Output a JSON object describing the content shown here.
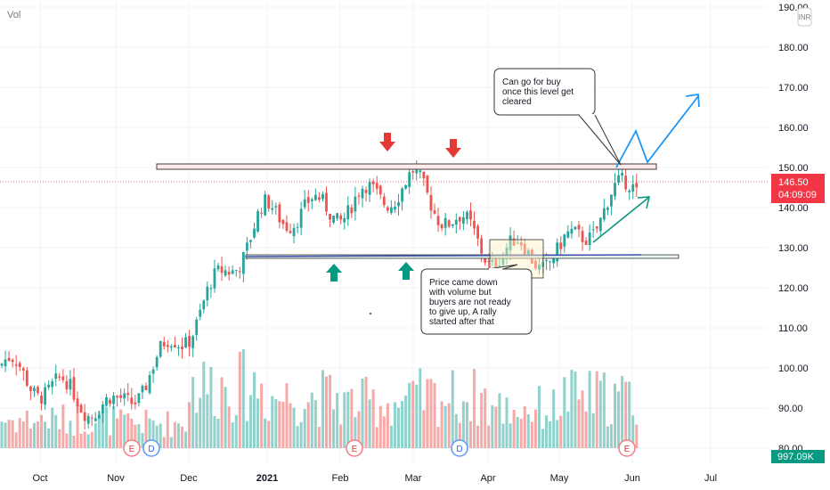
{
  "header": {
    "indicator_label": "Vol"
  },
  "price_axis": {
    "currency_badge": "INR",
    "tick_labels": [
      "190.00",
      "180.00",
      "170.00",
      "160.00",
      "150.00",
      "140.00",
      "130.00",
      "120.00",
      "110.00",
      "100.00",
      "90.00",
      "80.00"
    ],
    "last_price": "146.50",
    "countdown": "04:09:09",
    "volume_last": "997.09K",
    "price_tag_color": "#f23645",
    "volume_tag_color": "#089981"
  },
  "time_axis": {
    "labels": [
      "Oct",
      "Nov",
      "Dec",
      "2021",
      "Feb",
      "Mar",
      "Apr",
      "May",
      "Jun",
      "Jul"
    ]
  },
  "annotations": {
    "callout_top": [
      "Can go for buy",
      "once this level get",
      "cleared"
    ],
    "callout_bottom": [
      "Price came down",
      "with volume but",
      "buyers are not ready",
      "to give up, A rally",
      "started after that"
    ]
  },
  "event_badges": [
    "E",
    "D",
    "E",
    "E",
    "D",
    "E"
  ],
  "colors": {
    "up": "#26a69a",
    "down": "#ef5350",
    "projection": "#2196f3",
    "arrow_down": "#e53935",
    "arrow_up": "#089981"
  },
  "chart_data": {
    "type": "candlestick",
    "ylim": [
      80,
      190
    ],
    "resistance": 150,
    "support": 128,
    "last_price": 146.5,
    "months": [
      "Oct",
      "Nov",
      "Dec",
      "Jan",
      "Feb",
      "Mar",
      "Apr",
      "May",
      "Jun"
    ],
    "month_close": [
      96,
      89,
      110,
      138,
      140,
      146,
      129,
      128,
      146.5
    ],
    "month_volume_relative": [
      0.25,
      0.22,
      0.55,
      0.45,
      0.4,
      0.45,
      0.35,
      0.45,
      0.4
    ]
  }
}
